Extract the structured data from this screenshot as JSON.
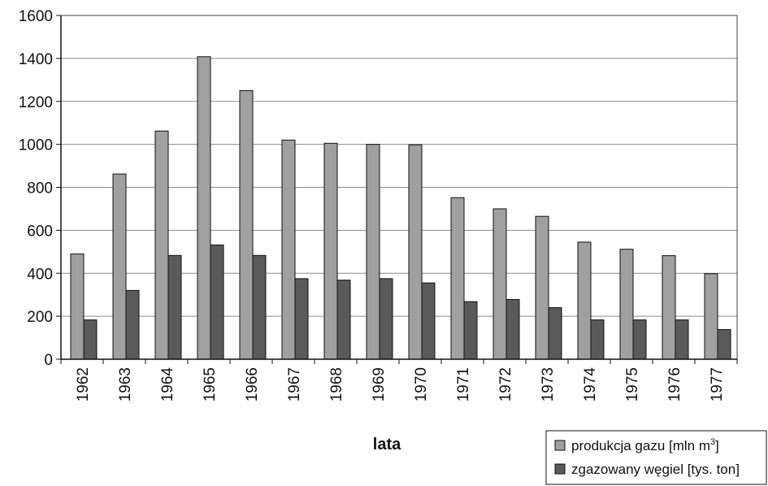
{
  "chart_data": {
    "type": "bar",
    "categories": [
      "1962",
      "1963",
      "1964",
      "1965",
      "1966",
      "1967",
      "1968",
      "1969",
      "1970",
      "1971",
      "1972",
      "1973",
      "1974",
      "1975",
      "1976",
      "1977"
    ],
    "series": [
      {
        "name": "produkcja gazu [mln m",
        "name_sup": "3",
        "name_suffix": "]",
        "color": "#a0a0a0",
        "values": [
          490,
          862,
          1062,
          1408,
          1250,
          1020,
          1005,
          1000,
          998,
          752,
          700,
          665,
          545,
          512,
          482,
          398
        ]
      },
      {
        "name": "zgazowany węgiel [tys. ton]",
        "color": "#5a5a5a",
        "values": [
          183,
          320,
          483,
          532,
          483,
          375,
          368,
          375,
          355,
          268,
          278,
          240,
          183,
          183,
          183,
          138
        ]
      }
    ],
    "xlabel": "lata",
    "ylabel": "",
    "ylim": [
      0,
      1600
    ],
    "yticks": [
      0,
      200,
      400,
      600,
      800,
      1000,
      1200,
      1400,
      1600
    ],
    "grid": true,
    "legend": "bottom-right"
  }
}
